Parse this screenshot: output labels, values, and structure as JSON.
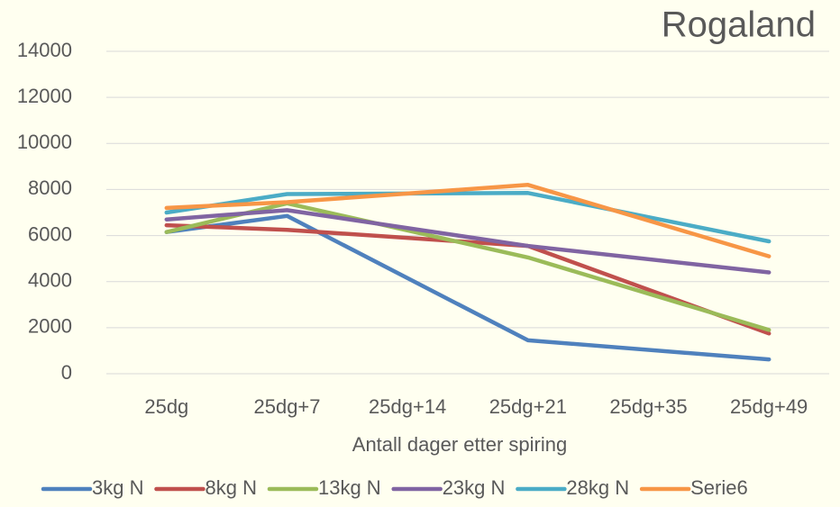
{
  "chart_data": {
    "type": "line",
    "title": "Rogaland",
    "x_label": "Antall dager etter spiring",
    "categories": [
      "25dg",
      "25dg+7",
      "25dg+14",
      "25dg+21",
      "25dg+35",
      "25dg+49"
    ],
    "series": [
      {
        "name": "3kg N",
        "color": "#4f81bd",
        "values": [
          6150,
          6850,
          null,
          1450,
          null,
          620
        ]
      },
      {
        "name": "8kg N",
        "color": "#c0504d",
        "values": [
          6450,
          6250,
          null,
          5550,
          null,
          1750
        ]
      },
      {
        "name": "13kg N",
        "color": "#9bbb59",
        "values": [
          6150,
          7400,
          null,
          5050,
          null,
          1900
        ]
      },
      {
        "name": "23kg N",
        "color": "#8064a2",
        "values": [
          6700,
          7100,
          null,
          5550,
          null,
          4400
        ]
      },
      {
        "name": "28kg N",
        "color": "#4bacc6",
        "values": [
          7000,
          7800,
          null,
          7850,
          null,
          5750
        ]
      },
      {
        "name": "Serie6",
        "color": "#f79646",
        "values": [
          7200,
          7450,
          null,
          8200,
          null,
          5100
        ]
      }
    ],
    "ylim": [
      0,
      14000
    ],
    "yticks": [
      0,
      2000,
      4000,
      6000,
      8000,
      10000,
      12000,
      14000
    ],
    "grid": true,
    "legend": "bottom"
  }
}
